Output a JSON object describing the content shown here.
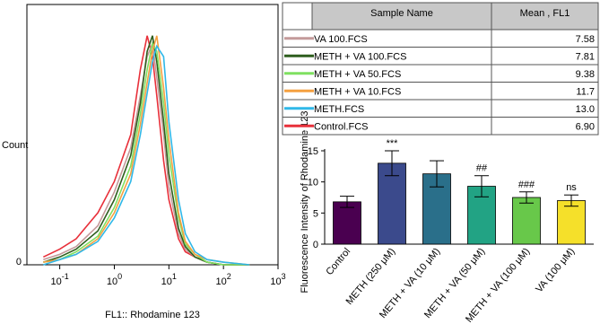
{
  "chart_data": [
    {
      "type": "line",
      "xlabel": "FL1:: Rhodamine 123",
      "ylabel": "Count",
      "xscale": "log",
      "xlim": [
        0.025,
        1000
      ],
      "ylim": [
        0,
        100
      ],
      "xticks": [
        {
          "value": 0.1,
          "label": "10",
          "exponent": "-1"
        },
        {
          "value": 1,
          "label": "10",
          "exponent": "0"
        },
        {
          "value": 10,
          "label": "10",
          "exponent": "1"
        },
        {
          "value": 100,
          "label": "10",
          "exponent": "2"
        },
        {
          "value": 1000,
          "label": "10",
          "exponent": "3"
        }
      ],
      "yticks": [
        0
      ],
      "x": [
        0.05,
        0.1,
        0.2,
        0.5,
        1,
        2,
        3,
        4,
        5,
        6,
        8,
        10,
        15,
        20,
        30,
        50,
        100,
        300
      ],
      "series": [
        {
          "color": "#e8303a",
          "values": [
            3,
            6,
            10,
            20,
            32,
            50,
            75,
            88,
            80,
            65,
            40,
            25,
            10,
            5,
            3,
            1,
            0,
            0
          ]
        },
        {
          "color": "#c49a9a",
          "values": [
            2,
            4,
            7,
            15,
            28,
            45,
            65,
            80,
            85,
            72,
            50,
            30,
            12,
            6,
            3,
            1,
            0,
            0
          ]
        },
        {
          "color": "#2e5e1e",
          "values": [
            1,
            3,
            6,
            13,
            25,
            42,
            62,
            82,
            88,
            78,
            55,
            35,
            14,
            7,
            3,
            1,
            0,
            0
          ]
        },
        {
          "color": "#7fe060",
          "values": [
            1,
            2,
            5,
            11,
            22,
            38,
            58,
            75,
            85,
            82,
            62,
            42,
            18,
            8,
            4,
            1,
            0,
            0
          ]
        },
        {
          "color": "#f5a040",
          "values": [
            1,
            2,
            4,
            10,
            20,
            35,
            54,
            70,
            82,
            88,
            68,
            48,
            20,
            9,
            4,
            2,
            1,
            0
          ]
        },
        {
          "color": "#30b8e8",
          "values": [
            0,
            2,
            4,
            9,
            18,
            32,
            50,
            66,
            78,
            84,
            80,
            55,
            25,
            12,
            5,
            2,
            1,
            0
          ]
        }
      ]
    },
    {
      "type": "bar",
      "ylabel": "Fluorescence Intensity of Rhodamine 123",
      "categories": [
        "Control",
        "METH (250 μM)",
        "METH + VA (10 μM)",
        "METH + VA (50 μM)",
        "METH + VA (100 μM)",
        "VA (100 μM)"
      ],
      "values": [
        6.8,
        13.0,
        11.3,
        9.3,
        7.5,
        7.0
      ],
      "errors": [
        0.9,
        2.0,
        2.1,
        1.7,
        0.9,
        0.9
      ],
      "annotations": [
        null,
        "***",
        null,
        "##",
        "###",
        "ns"
      ],
      "colors": [
        "#4a0050",
        "#3b4a8c",
        "#2a6f8a",
        "#22a384",
        "#68c84a",
        "#f5e02a"
      ],
      "ylim": [
        0,
        15
      ],
      "yticks": [
        0,
        5,
        10,
        15
      ]
    }
  ],
  "table": {
    "headers": [
      "Sample Name",
      "Mean , FL1"
    ],
    "rows": [
      [
        "VA 100.FCS",
        "7.58"
      ],
      [
        "METH + VA 100.FCS",
        "7.81"
      ],
      [
        "METH + VA 50.FCS",
        "9.38"
      ],
      [
        "METH + VA 10.FCS",
        "11.7"
      ],
      [
        "METH.FCS",
        "13.0"
      ],
      [
        "Control.FCS",
        "6.90"
      ]
    ],
    "swatches": [
      "#c49a9a",
      "#2e5e1e",
      "#7fe060",
      "#f5a040",
      "#30b8e8",
      "#e8303a"
    ]
  }
}
